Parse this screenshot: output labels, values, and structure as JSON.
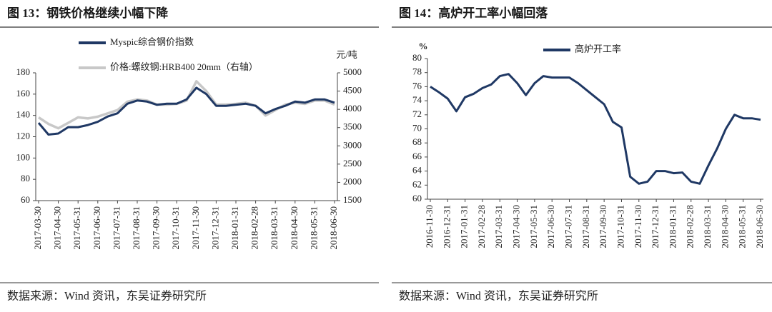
{
  "chart_data": [
    {
      "type": "line",
      "title": "图 13：钢铁价格继续小幅下降",
      "y2_unit": "元/吨",
      "categories": [
        "2017-03-30",
        null,
        "2017-04-30",
        null,
        "2017-05-31",
        null,
        "2017-06-30",
        null,
        "2017-07-31",
        null,
        "2017-08-31",
        null,
        "2017-09-30",
        null,
        "2017-10-31",
        null,
        "2017-11-30",
        null,
        "2017-12-31",
        null,
        "2018-01-31",
        null,
        "2018-02-28",
        null,
        "2018-03-31",
        null,
        "2018-04-30",
        null,
        "2018-05-31",
        null,
        "2018-06-30"
      ],
      "series": [
        {
          "name": "Myspic综合钢价指数",
          "color": "#1f3864",
          "values": [
            133,
            122,
            123,
            129,
            129,
            131,
            134,
            139,
            142,
            151,
            154,
            153,
            150,
            151,
            151,
            155,
            166,
            160,
            149,
            149,
            150,
            151,
            149,
            142,
            146,
            149,
            153,
            152,
            155,
            155,
            152
          ]
        },
        {
          "name": "价格:螺纹钢:HRB400 20mm（右轴）",
          "color": "#c8c8c8",
          "axis": "y2",
          "values": [
            3780,
            3600,
            3480,
            3630,
            3780,
            3750,
            3800,
            3890,
            3980,
            4210,
            4270,
            4240,
            4130,
            4130,
            4150,
            4240,
            4770,
            4500,
            4130,
            4130,
            4150,
            4180,
            4100,
            3830,
            3980,
            4130,
            4180,
            4150,
            4240,
            4240,
            4130
          ]
        }
      ],
      "ylim": [
        60,
        180
      ],
      "yticks": [
        60,
        80,
        100,
        120,
        140,
        160,
        180
      ],
      "y2lim": [
        1500,
        5000
      ],
      "y2ticks": [
        1500,
        2000,
        2500,
        3000,
        3500,
        4000,
        4500,
        5000
      ],
      "source": "数据来源：Wind 资讯，东吴证券研究所"
    },
    {
      "type": "line",
      "title": "图 14：高炉开工率小幅回落",
      "y_unit": "%",
      "categories": [
        "2016-11-30",
        null,
        "2016-12-31",
        null,
        "2017-01-31",
        null,
        "2017-02-28",
        null,
        "2017-03-31",
        null,
        "2017-04-30",
        null,
        "2017-05-31",
        null,
        "2017-06-30",
        null,
        "2017-07-31",
        null,
        "2017-08-31",
        null,
        "2017-09-30",
        null,
        "2017-10-31",
        null,
        "2017-11-30",
        null,
        "2017-12-31",
        null,
        "2018-01-31",
        null,
        "2018-02-28",
        null,
        "2018-03-31",
        null,
        "2018-04-30",
        null,
        "2018-05-31",
        null,
        "2018-06-30"
      ],
      "series": [
        {
          "name": "高炉开工率",
          "color": "#1f3864",
          "values": [
            76,
            75.2,
            74.3,
            72.5,
            74.5,
            75,
            75.8,
            76.3,
            77.5,
            77.8,
            76.5,
            74.8,
            76.5,
            77.5,
            77.3,
            77.3,
            77.3,
            76.5,
            75.5,
            74.5,
            73.5,
            71,
            70.2,
            63.2,
            62.2,
            62.5,
            64,
            64,
            63.7,
            63.8,
            62.5,
            62.2,
            64.8,
            67.2,
            70,
            72,
            71.5,
            71.5,
            71.3
          ]
        }
      ],
      "ylim": [
        60,
        80
      ],
      "yticks": [
        60,
        62,
        64,
        66,
        68,
        70,
        72,
        74,
        76,
        78,
        80
      ],
      "source": "数据来源：Wind 资讯，东吴证券研究所"
    }
  ]
}
